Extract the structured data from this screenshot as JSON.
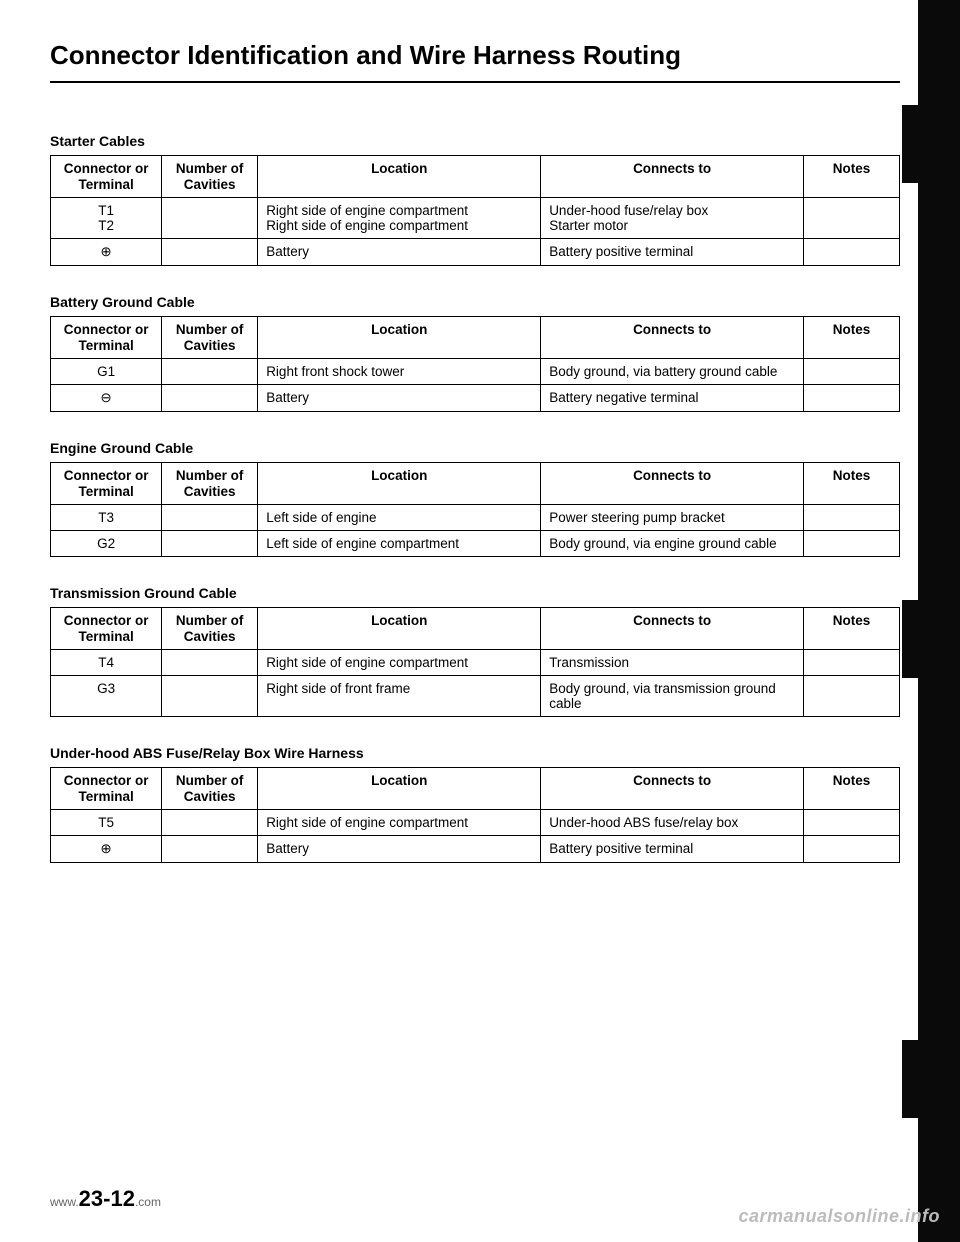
{
  "title": "Connector Identification and Wire Harness Routing",
  "columns": {
    "c1": "Connector or Terminal",
    "c2": "Number of Cavities",
    "c3": "Location",
    "c4": "Connects to",
    "c5": "Notes"
  },
  "sections": [
    {
      "label": "Starter Cables",
      "rows": [
        {
          "terminal": "T1\nT2",
          "cavities": "",
          "location": "Right side of engine compartment\nRight side of engine compartment",
          "connects": "Under-hood fuse/relay box\nStarter motor",
          "notes": ""
        },
        {
          "terminal": "⊕",
          "cavities": "",
          "location": "Battery",
          "connects": "Battery positive terminal",
          "notes": ""
        }
      ]
    },
    {
      "label": "Battery Ground Cable",
      "rows": [
        {
          "terminal": "G1",
          "cavities": "",
          "location": "Right front shock tower",
          "connects": "Body ground, via battery ground cable",
          "notes": ""
        },
        {
          "terminal": "⊖",
          "cavities": "",
          "location": "Battery",
          "connects": "Battery negative terminal",
          "notes": ""
        }
      ]
    },
    {
      "label": "Engine Ground Cable",
      "rows": [
        {
          "terminal": "T3",
          "cavities": "",
          "location": "Left side of engine",
          "connects": "Power steering pump bracket",
          "notes": ""
        },
        {
          "terminal": "G2",
          "cavities": "",
          "location": "Left side of engine compartment",
          "connects": "Body ground, via engine ground cable",
          "notes": ""
        }
      ]
    },
    {
      "label": "Transmission Ground Cable",
      "rows": [
        {
          "terminal": "T4",
          "cavities": "",
          "location": "Right side of engine compartment",
          "connects": "Transmission",
          "notes": ""
        },
        {
          "terminal": "G3",
          "cavities": "",
          "location": "Right side of front frame",
          "connects": "Body ground, via transmission ground cable",
          "notes": ""
        }
      ]
    },
    {
      "label": "Under-hood ABS Fuse/Relay Box Wire Harness",
      "rows": [
        {
          "terminal": "T5",
          "cavities": "",
          "location": "Right side of engine compartment",
          "connects": "Under-hood ABS fuse/relay box",
          "notes": ""
        },
        {
          "terminal": "⊕",
          "cavities": "",
          "location": "Battery",
          "connects": "Battery positive terminal",
          "notes": ""
        }
      ]
    }
  ],
  "page_number": "23-12",
  "page_number_prefix": "www.",
  "page_number_suffix": ".com",
  "watermark": "carmanualsonline.info",
  "colors": {
    "text": "#000000",
    "bg": "#ffffff",
    "watermark": "#bcbcbc",
    "binding": "#0a0a0a"
  }
}
